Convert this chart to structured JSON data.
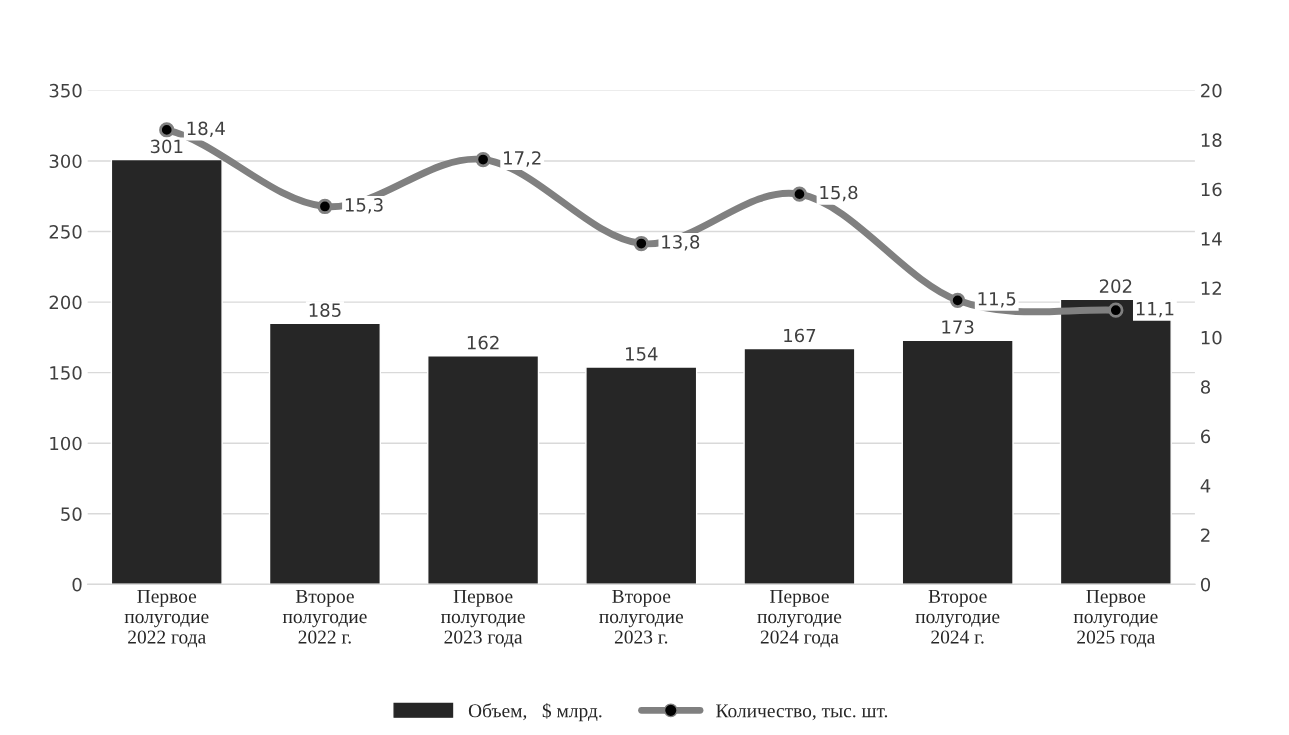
{
  "chart_data": {
    "type": "bar",
    "categories": [
      "Первое\nполугодие\n2022 года",
      "Второе\nполугодие\n2022 г.",
      "Первое\nполугодие\n2023 года",
      "Второе\nполугодие\n2023 г.",
      "Первое\nполугодие\n2024 года",
      "Второе\nполугодие\n2024 г.",
      "Первое\nполугодие\n2025 года"
    ],
    "series": [
      {
        "name": "Объем,   $ млрд.",
        "color": "#262626",
        "values": [
          301,
          185,
          162,
          154,
          167,
          173,
          202
        ],
        "value_labels": [
          "301",
          "185",
          "162",
          "154",
          "167",
          "173",
          "202"
        ]
      },
      {
        "name": "Количество, тыс. шт.",
        "type": "line",
        "axis": "y2",
        "color": "#808080",
        "marker": "circle",
        "line_style": "solid",
        "values": [
          18.4,
          15.3,
          17.2,
          13.8,
          15.8,
          11.5,
          11.1
        ],
        "value_labels": [
          "18,4",
          "15,3",
          "17,2",
          "13,8",
          "15,8",
          "11,5",
          "11,1"
        ]
      }
    ],
    "ylim": [
      0,
      350
    ],
    "yticks": [
      0,
      50,
      100,
      150,
      200,
      250,
      300,
      350
    ],
    "y2lim": [
      0,
      20
    ],
    "y2ticks": [
      0,
      2,
      4,
      6,
      8,
      10,
      12,
      14,
      16,
      18,
      20
    ],
    "grid": "y",
    "legend": "bottom"
  }
}
